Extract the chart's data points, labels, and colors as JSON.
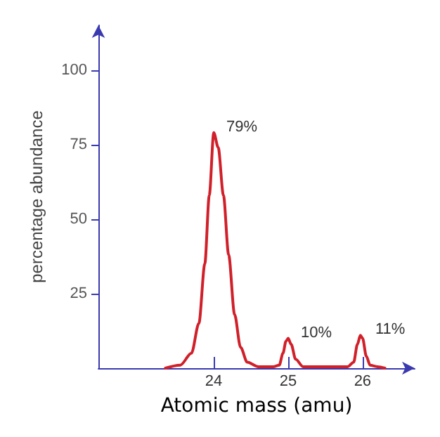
{
  "chart_data": {
    "type": "line",
    "xlabel": "Atomic mass (amu)",
    "ylabel": "percentage abundance",
    "xlim": [
      22.45,
      26.7
    ],
    "ylim": [
      0,
      115
    ],
    "xticks": [
      24,
      25,
      26
    ],
    "yticks": [
      25,
      50,
      75,
      100
    ],
    "grid": false,
    "marker": "none",
    "line_style": "solid",
    "series": [
      {
        "color": "#d0202a",
        "x": [
          23.35,
          23.55,
          23.7,
          23.8,
          23.88,
          23.94,
          24.0,
          24.06,
          24.13,
          24.2,
          24.28,
          24.36,
          24.45,
          24.6,
          24.8,
          24.88,
          24.93,
          24.97,
          25.0,
          25.04,
          25.1,
          25.2,
          25.8,
          25.88,
          25.93,
          25.97,
          26.0,
          26.05,
          26.1,
          26.2,
          26.3
        ],
        "values": [
          0,
          1,
          5,
          15,
          35,
          58,
          79,
          74,
          58,
          38,
          18,
          7,
          2,
          0.5,
          0.5,
          1,
          5,
          9,
          10,
          8,
          3,
          0.5,
          0.5,
          2,
          8,
          11,
          10,
          4,
          1,
          0.5,
          0
        ]
      }
    ],
    "annotations": [
      {
        "text": "79%",
        "x": 24,
        "y": 79
      },
      {
        "text": "10%",
        "x": 25,
        "y": 10
      },
      {
        "text": "11%",
        "x": 26,
        "y": 11
      }
    ]
  }
}
